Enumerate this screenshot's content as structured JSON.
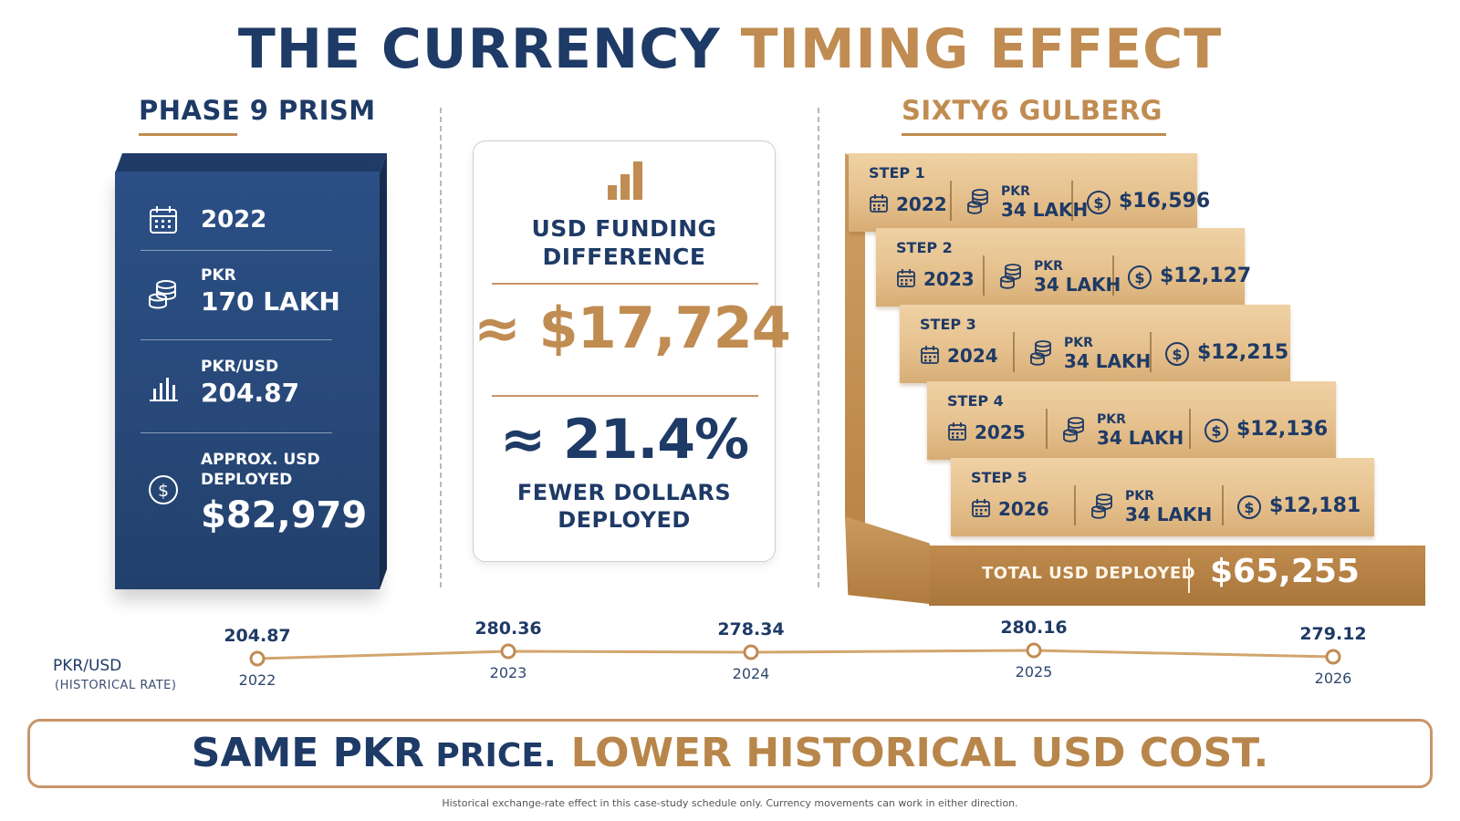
{
  "title": {
    "part1": "THE CURRENCY ",
    "part2": "TIMING EFFECT"
  },
  "left": {
    "heading": "PHASE 9 PRISM",
    "year": "2022",
    "pkr_label": "PKR",
    "pkr_value": "170 LAKH",
    "rate_label": "PKR/USD",
    "rate_value": "204.87",
    "usd_label_1": "APPROX. USD",
    "usd_label_2": "DEPLOYED",
    "usd_value": "$82,979"
  },
  "middle": {
    "title_1": "USD FUNDING",
    "title_2": "DIFFERENCE",
    "usd_diff": "≈ $17,724",
    "pct_diff": "≈ 21.4%",
    "sub_1": "FEWER DOLLARS",
    "sub_2": "DEPLOYED"
  },
  "right": {
    "heading": "SIXTY6 GULBERG",
    "steps": [
      {
        "label": "STEP 1",
        "year": "2022",
        "pkr": "PKR",
        "lakh": "34 LAKH",
        "usd": "$16,596"
      },
      {
        "label": "STEP 2",
        "year": "2023",
        "pkr": "PKR",
        "lakh": "34 LAKH",
        "usd": "$12,127"
      },
      {
        "label": "STEP 3",
        "year": "2024",
        "pkr": "PKR",
        "lakh": "34 LAKH",
        "usd": "$12,215"
      },
      {
        "label": "STEP 4",
        "year": "2025",
        "pkr": "PKR",
        "lakh": "34 LAKH",
        "usd": "$12,136"
      },
      {
        "label": "STEP 5",
        "year": "2026",
        "pkr": "PKR",
        "lakh": "34 LAKH",
        "usd": "$12,181"
      }
    ],
    "total_label": "TOTAL USD DEPLOYED",
    "total_value": "$65,255"
  },
  "timeline": {
    "label": "PKR/USD",
    "sub": "(HISTORICAL RATE)",
    "points": [
      {
        "rate": "204.87",
        "year": "2022"
      },
      {
        "rate": "280.36",
        "year": "2023"
      },
      {
        "rate": "278.34",
        "year": "2024"
      },
      {
        "rate": "280.16",
        "year": "2025"
      },
      {
        "rate": "279.12",
        "year": "2026"
      }
    ]
  },
  "banner": {
    "part1": "SAME PKR",
    "part2": " PRICE.",
    "part3": "LOWER HISTORICAL USD COST."
  },
  "disclaimer": "Historical exchange-rate effect in this case-study schedule only. Currency movements can work in either direction.",
  "colors": {
    "navy": "#1e3a66",
    "gold": "#c08c52"
  },
  "icons": [
    "calendar-icon",
    "coins-icon",
    "bar-chart-icon",
    "dollar-circle-icon"
  ]
}
